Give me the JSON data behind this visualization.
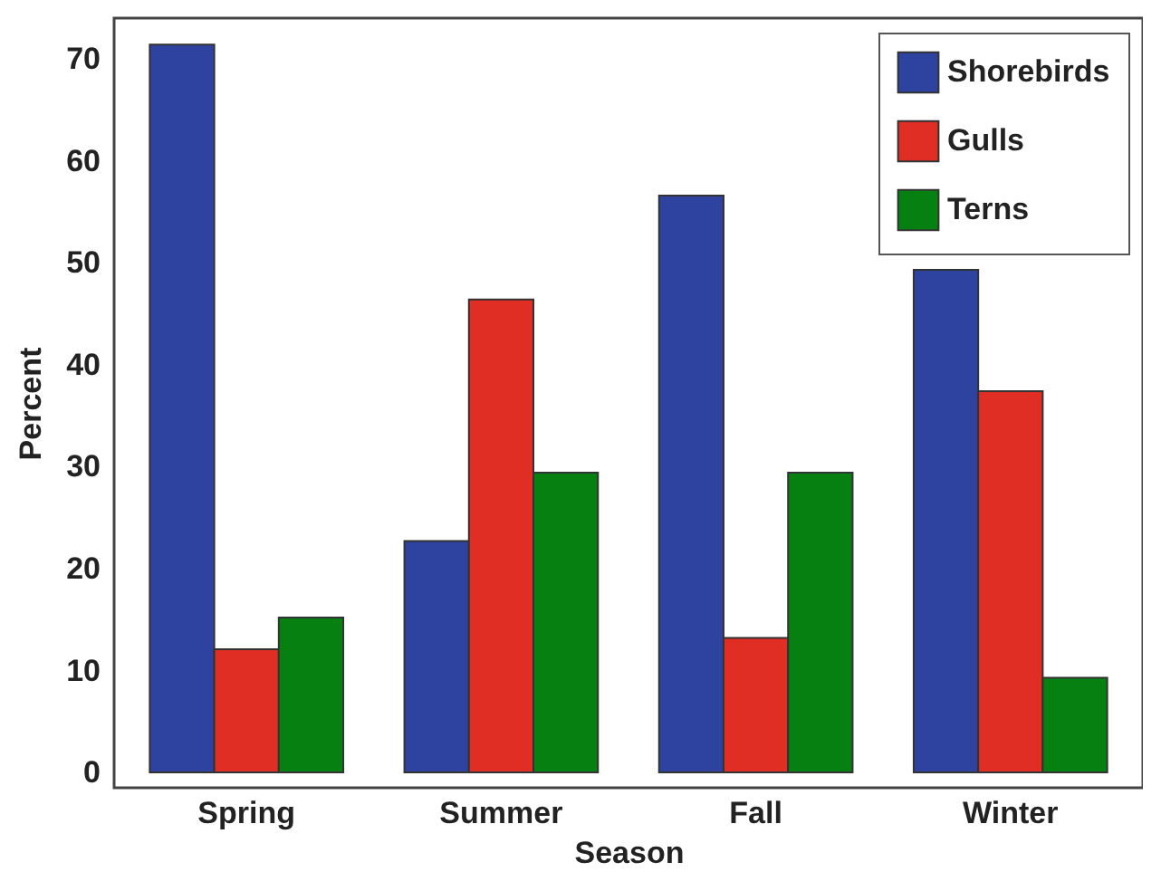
{
  "chart_data": {
    "type": "bar",
    "xlabel": "Season",
    "ylabel": "Percent",
    "categories": [
      "Spring",
      "Summer",
      "Fall",
      "Winter"
    ],
    "series": [
      {
        "name": "Shorebirds",
        "color": "#2e43a0",
        "values": [
          71.4,
          22.7,
          56.6,
          49.3
        ]
      },
      {
        "name": "Gulls",
        "color": "#e02e24",
        "values": [
          12.1,
          46.4,
          13.2,
          37.4
        ]
      },
      {
        "name": "Terns",
        "color": "#078012",
        "values": [
          15.2,
          29.4,
          29.4,
          9.3
        ]
      }
    ],
    "ylim": [
      -1.5,
      74
    ],
    "yticks": [
      0,
      10,
      20,
      30,
      40,
      50,
      60,
      70
    ],
    "grid": false,
    "legend": "top right"
  }
}
